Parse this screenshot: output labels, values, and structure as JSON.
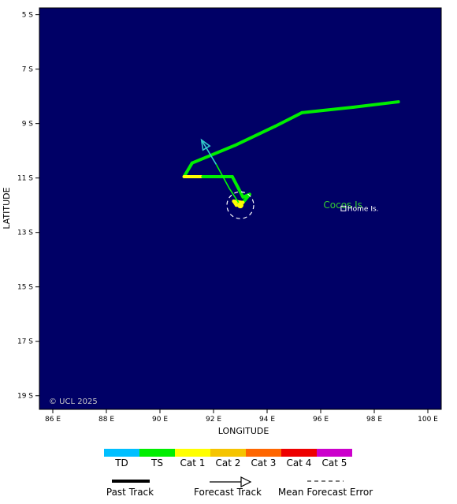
{
  "map": {
    "xlabel": "LONGITUDE",
    "ylabel": "LATITUDE",
    "copyright": "© UCL 2025",
    "ocean_color": "#000066",
    "lon_range": [
      85.5,
      100.5
    ],
    "lat_range": [
      -4.75,
      -19.5
    ],
    "lon_ticks": [
      {
        "value": 86,
        "label": "86 E"
      },
      {
        "value": 88,
        "label": "88 E"
      },
      {
        "value": 90,
        "label": "90 E"
      },
      {
        "value": 92,
        "label": "92 E"
      },
      {
        "value": 94,
        "label": "94 E"
      },
      {
        "value": 96,
        "label": "96 E"
      },
      {
        "value": 98,
        "label": "98 E"
      },
      {
        "value": 100,
        "label": "100 E"
      }
    ],
    "lat_ticks": [
      {
        "value": -5,
        "label": "5 S"
      },
      {
        "value": -7,
        "label": "7 S"
      },
      {
        "value": -9,
        "label": "9 S"
      },
      {
        "value": -11,
        "label": "11 S"
      },
      {
        "value": -13,
        "label": "13 S"
      },
      {
        "value": -15,
        "label": "15 S"
      },
      {
        "value": -17,
        "label": "17 S"
      },
      {
        "value": -19,
        "label": "19 S"
      }
    ],
    "places": {
      "cocos": {
        "name": "Cocos Is",
        "lon": 96.1,
        "lat": -12.0,
        "color": "#33cc33"
      },
      "home": {
        "name": "Home Is.",
        "lon": 96.85,
        "lat": -12.12
      }
    },
    "past_track": [
      {
        "lon": 98.9,
        "lat": -8.2,
        "cat": "TS"
      },
      {
        "lon": 97.2,
        "lat": -8.4,
        "cat": "TS"
      },
      {
        "lon": 95.3,
        "lat": -8.6,
        "cat": "TS"
      },
      {
        "lon": 94.3,
        "lat": -9.1,
        "cat": "TS"
      },
      {
        "lon": 92.8,
        "lat": -9.8,
        "cat": "TS"
      },
      {
        "lon": 91.2,
        "lat": -10.45,
        "cat": "TS"
      },
      {
        "lon": 90.9,
        "lat": -10.95,
        "cat": "Cat 1"
      },
      {
        "lon": 91.6,
        "lat": -10.95,
        "cat": "TS"
      },
      {
        "lon": 92.7,
        "lat": -10.95,
        "cat": "TS"
      },
      {
        "lon": 93.1,
        "lat": -11.7,
        "cat": "TS"
      },
      {
        "lon": 93.35,
        "lat": -11.6,
        "cat": "TS"
      },
      {
        "lon": 93.1,
        "lat": -11.9,
        "cat": "Cat 1"
      },
      {
        "lon": 92.75,
        "lat": -11.85,
        "cat": "Cat 1"
      },
      {
        "lon": 92.85,
        "lat": -12.0,
        "cat": "Cat 1"
      },
      {
        "lon": 93.0,
        "lat": -12.0,
        "cat": "Cat 1"
      }
    ],
    "forecast_track": [
      {
        "lon": 93.0,
        "lat": -12.0
      },
      {
        "lon": 92.6,
        "lat": -11.4
      },
      {
        "lon": 92.1,
        "lat": -10.5
      },
      {
        "lon": 91.55,
        "lat": -9.6
      }
    ],
    "forecast_colors": [
      "#00ff00",
      "#00ff00",
      "#33cccc"
    ],
    "current_position": {
      "lon": 93.0,
      "lat": -12.0,
      "color": "#ffff00"
    },
    "error_circle": {
      "lon": 93.0,
      "lat": -12.0,
      "radius_deg": 0.5
    }
  },
  "legend": {
    "categories": [
      {
        "label": "TD",
        "color": "#00bfff"
      },
      {
        "label": "TS",
        "color": "#00ee00"
      },
      {
        "label": "Cat 1",
        "color": "#ffff00"
      },
      {
        "label": "Cat 2",
        "color": "#f5c400"
      },
      {
        "label": "Cat 3",
        "color": "#ff6600"
      },
      {
        "label": "Cat 4",
        "color": "#ee0000"
      },
      {
        "label": "Cat 5",
        "color": "#cc00cc"
      }
    ],
    "past_track_label": "Past Track",
    "forecast_track_label": "Forecast Track",
    "error_label": "Mean Forecast Error"
  }
}
